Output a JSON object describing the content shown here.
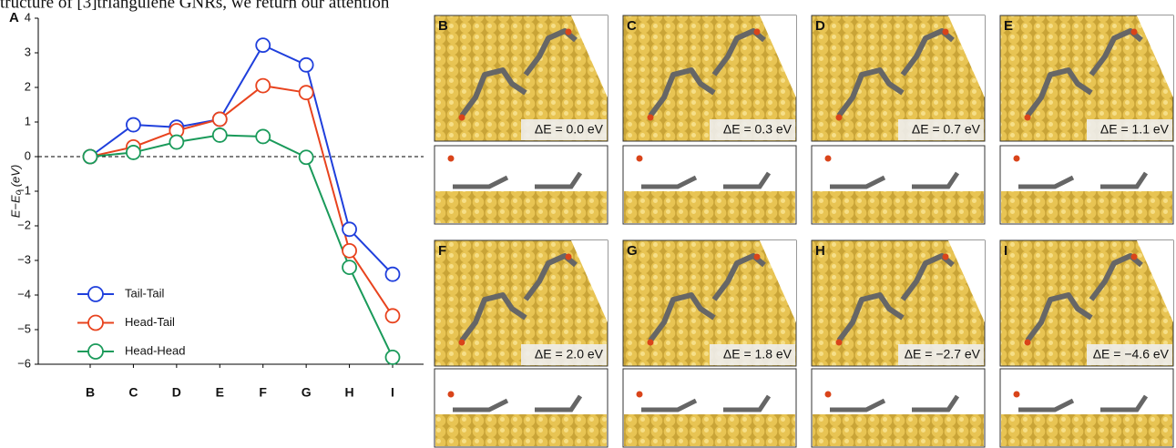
{
  "header_text": "tructure of [3]triangulene GNRs, we return our attention",
  "chart_data": {
    "type": "line",
    "panel_label": "A",
    "ylabel": "E−E₀ (eV)",
    "categories": [
      "B",
      "C",
      "D",
      "E",
      "F",
      "G",
      "H",
      "I"
    ],
    "series": [
      {
        "name": "Tail-Tail",
        "color": "#1f3fdc",
        "values": [
          0,
          0.92,
          0.85,
          1.08,
          3.22,
          2.65,
          -2.1,
          -3.4
        ]
      },
      {
        "name": "Head-Tail",
        "color": "#e8431e",
        "values": [
          0,
          0.28,
          0.75,
          1.08,
          2.05,
          1.85,
          -2.72,
          -4.6
        ]
      },
      {
        "name": "Head-Head",
        "color": "#1a9a5a",
        "values": [
          0,
          0.12,
          0.42,
          0.62,
          0.58,
          -0.02,
          -3.2,
          -5.8
        ]
      }
    ],
    "ylim": [
      -6,
      4
    ],
    "yticks": [
      {
        "value": -6,
        "label": "−6"
      },
      {
        "value": -5,
        "label": "−5"
      },
      {
        "value": -4,
        "label": "−4"
      },
      {
        "value": -3,
        "label": "−3"
      },
      {
        "value": -2,
        "label": "−2"
      },
      {
        "value": -1,
        "label": "−1"
      },
      0,
      1,
      2,
      3,
      4
    ],
    "zero_line": true,
    "legend": "lower-left"
  },
  "panels": [
    {
      "label": "B",
      "delta_e": "ΔE = 0.0 eV"
    },
    {
      "label": "C",
      "delta_e": "ΔE = 0.3 eV"
    },
    {
      "label": "D",
      "delta_e": "ΔE = 0.7 eV"
    },
    {
      "label": "E",
      "delta_e": "ΔE = 1.1 eV"
    },
    {
      "label": "F",
      "delta_e": "ΔE = 2.0 eV"
    },
    {
      "label": "G",
      "delta_e": "ΔE = 1.8 eV"
    },
    {
      "label": "H",
      "delta_e": "ΔE = −2.7 eV"
    },
    {
      "label": "I",
      "delta_e": "ΔE = −4.6 eV"
    }
  ]
}
